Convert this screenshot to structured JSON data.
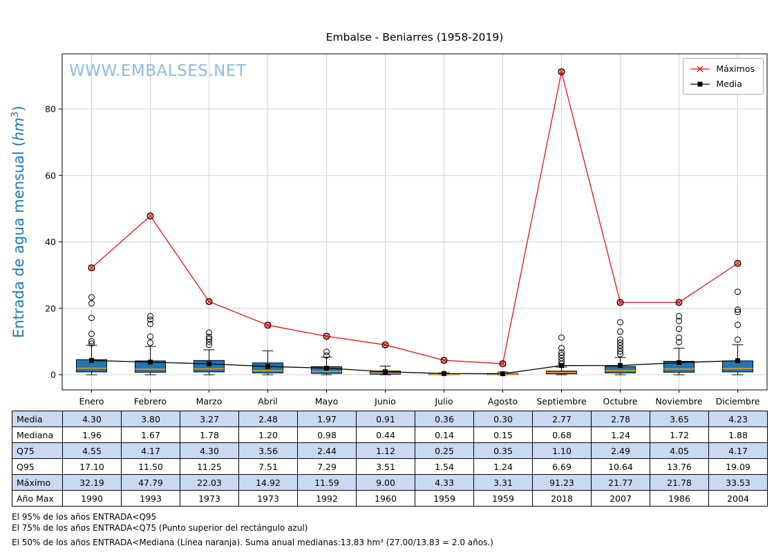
{
  "title": "Embalse - Beniarres (1958-2019)",
  "watermark": "WWW.EMBALSES.NET",
  "ylabel": {
    "prefix": "Entrada de agua mensual (",
    "math": "hm",
    "sup": "3",
    "suffix": ")"
  },
  "legend": {
    "maximos": "Máximos",
    "media": "Media"
  },
  "colors": {
    "max_line": "#e01010",
    "media_line": "#000000",
    "box_fill": "#1f77b4",
    "median_line": "#ff9500",
    "ylabel": "#1f77b4",
    "watermark": "#85b3d6",
    "grid": "#d0d0d0",
    "table_shade": "#c9d9f1"
  },
  "chart_data": {
    "type": "boxplot+line",
    "title": "Embalse - Beniarres (1958-2019)",
    "xlabel": "",
    "ylabel": "Entrada de agua mensual (hm³)",
    "grid": true,
    "legend_position": "upper right",
    "ylim": [
      -4.6,
      96.6
    ],
    "yticks": [
      0,
      20,
      40,
      60,
      80
    ],
    "categories": [
      "Enero",
      "Febrero",
      "Marzo",
      "Abril",
      "Mayo",
      "Junio",
      "Julio",
      "Agosto",
      "Septiembre",
      "Octubre",
      "Noviembre",
      "Diciembre"
    ],
    "series": [
      {
        "name": "Máximos",
        "values": [
          32.19,
          47.79,
          22.03,
          14.92,
          11.59,
          9.0,
          4.33,
          3.31,
          91.23,
          21.77,
          21.78,
          33.53
        ]
      },
      {
        "name": "Media",
        "values": [
          4.3,
          3.8,
          3.27,
          2.48,
          1.97,
          0.91,
          0.36,
          0.3,
          2.77,
          2.78,
          3.65,
          4.23
        ]
      }
    ],
    "boxes": [
      {
        "whislo": 0.0,
        "q1": 0.85,
        "med": 1.96,
        "q3": 4.55,
        "whishi": 8.9,
        "outliers": [
          9.4,
          10.1,
          12.3,
          17.1,
          21.5,
          23.3,
          32.19
        ]
      },
      {
        "whislo": 0.0,
        "q1": 0.75,
        "med": 1.67,
        "q3": 4.17,
        "whishi": 8.5,
        "outliers": [
          9.6,
          11.5,
          15.3,
          16.6,
          17.6,
          47.79
        ]
      },
      {
        "whislo": 0.0,
        "q1": 0.85,
        "med": 1.78,
        "q3": 4.3,
        "whishi": 7.5,
        "outliers": [
          9.0,
          9.9,
          10.8,
          11.4,
          12.7,
          22.03
        ]
      },
      {
        "whislo": 0.0,
        "q1": 0.55,
        "med": 1.2,
        "q3": 3.56,
        "whishi": 7.2,
        "outliers": [
          14.92
        ]
      },
      {
        "whislo": 0.0,
        "q1": 0.4,
        "med": 0.98,
        "q3": 2.44,
        "whishi": 5.3,
        "outliers": [
          5.8,
          6.9,
          11.59
        ]
      },
      {
        "whislo": 0.0,
        "q1": 0.17,
        "med": 0.44,
        "q3": 1.12,
        "whishi": 2.6,
        "outliers": [
          9.0
        ]
      },
      {
        "whislo": 0.0,
        "q1": 0.05,
        "med": 0.14,
        "q3": 0.25,
        "whishi": 0.55,
        "outliers": [
          4.33
        ]
      },
      {
        "whislo": 0.0,
        "q1": 0.06,
        "med": 0.15,
        "q3": 0.35,
        "whishi": 0.8,
        "outliers": [
          3.31
        ]
      },
      {
        "whislo": 0.0,
        "q1": 0.28,
        "med": 0.68,
        "q3": 1.1,
        "whishi": 2.3,
        "outliers": [
          3.3,
          4.1,
          5.0,
          5.9,
          6.7,
          8.0,
          11.2,
          91.23
        ]
      },
      {
        "whislo": 0.0,
        "q1": 0.55,
        "med": 1.24,
        "q3": 2.49,
        "whishi": 5.2,
        "outliers": [
          6.2,
          7.0,
          7.9,
          8.8,
          9.7,
          10.6,
          13.0,
          15.8,
          21.77
        ]
      },
      {
        "whislo": 0.0,
        "q1": 0.75,
        "med": 1.72,
        "q3": 4.05,
        "whishi": 8.0,
        "outliers": [
          9.8,
          11.2,
          13.8,
          16.2,
          17.6,
          21.78
        ]
      },
      {
        "whislo": 0.0,
        "q1": 0.85,
        "med": 1.88,
        "q3": 4.17,
        "whishi": 9.0,
        "outliers": [
          10.6,
          15.0,
          18.9,
          19.6,
          25.0,
          33.53
        ]
      }
    ]
  },
  "table": {
    "row_labels": [
      "Media",
      "Mediana",
      "Q75",
      "Q95",
      "Máximo",
      "Año Max"
    ],
    "rows": [
      [
        "4.30",
        "3.80",
        "3.27",
        "2.48",
        "1.97",
        "0.91",
        "0.36",
        "0.30",
        "2.77",
        "2.78",
        "3.65",
        "4.23"
      ],
      [
        "1.96",
        "1.67",
        "1.78",
        "1.20",
        "0.98",
        "0.44",
        "0.14",
        "0.15",
        "0.68",
        "1.24",
        "1.72",
        "1.88"
      ],
      [
        "4.55",
        "4.17",
        "4.30",
        "3.56",
        "2.44",
        "1.12",
        "0.25",
        "0.35",
        "1.10",
        "2.49",
        "4.05",
        "4.17"
      ],
      [
        "17.10",
        "11.50",
        "11.25",
        "7.51",
        "7.29",
        "3.51",
        "1.54",
        "1.24",
        "6.69",
        "10.64",
        "13.76",
        "19.09"
      ],
      [
        "32.19",
        "47.79",
        "22.03",
        "14.92",
        "11.59",
        "9.00",
        "4.33",
        "3.31",
        "91.23",
        "21.77",
        "21.78",
        "33.53"
      ],
      [
        "1990",
        "1993",
        "1973",
        "1973",
        "1992",
        "1960",
        "1959",
        "1959",
        "2018",
        "2007",
        "1986",
        "2004"
      ]
    ]
  },
  "footer": [
    "El 95% de los años ENTRADA<Q95",
    "El 75% de los años ENTRADA<Q75 (Punto superior del rectángulo azul)",
    "El 50% de los años ENTRADA<Mediana (Línea naranja). Suma anual medianas:13.83 hm³ (27.00/13.83 = 2.0 años.)"
  ]
}
